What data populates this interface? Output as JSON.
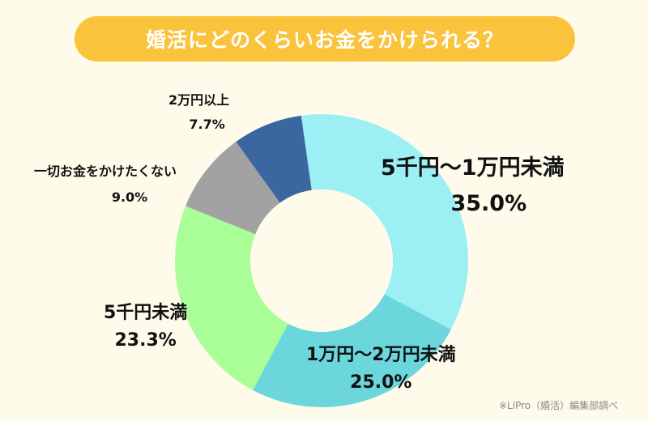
{
  "chart_data": {
    "type": "pie",
    "title": "婚活にどのくらいお金をかけられる？",
    "donut": true,
    "slices": [
      {
        "label": "5千円〜1万円未満",
        "value": 35.0,
        "display": "35.0%",
        "color": "#9cf0f4"
      },
      {
        "label": "1万円〜2万円未満",
        "value": 25.0,
        "display": "25.0%",
        "color": "#6bd6dc"
      },
      {
        "label": "5千円未満",
        "value": 23.3,
        "display": "23.3%",
        "color": "#aafe98"
      },
      {
        "label": "一切お金をかけたくない",
        "value": 9.0,
        "display": "9.0%",
        "color": "#a2a2a2"
      },
      {
        "label": "2万円以上",
        "value": 7.7,
        "display": "7.7%",
        "color": "#3b67a1"
      }
    ],
    "source": "※LiPro（婚活）編集部調べ"
  }
}
